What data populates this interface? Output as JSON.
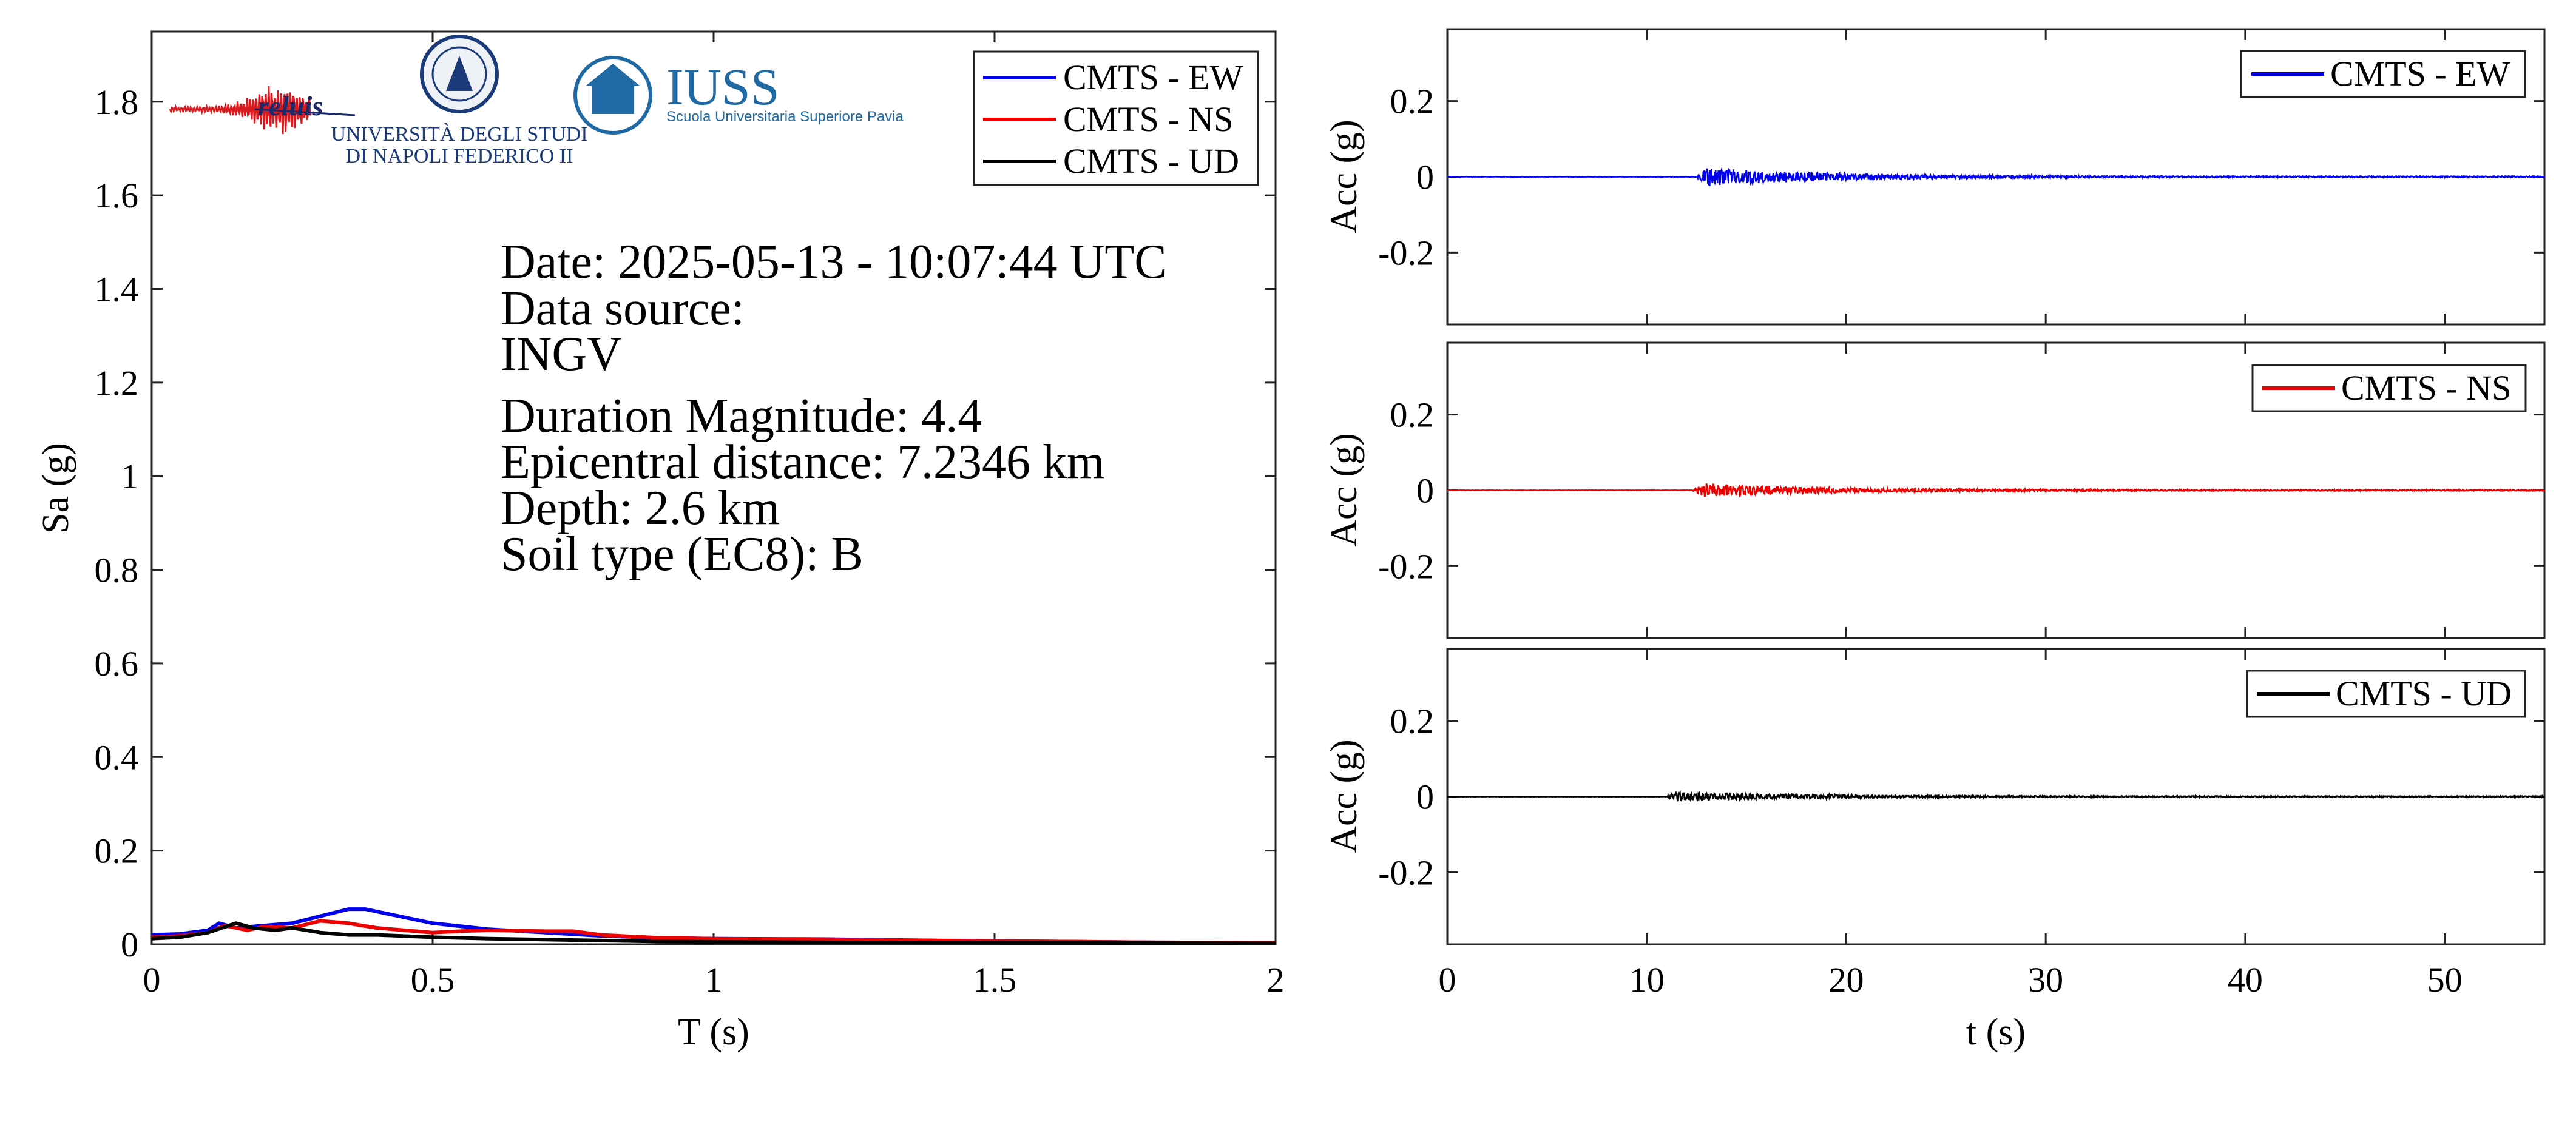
{
  "logos": {
    "reluis": "reluis",
    "unina_line1": "UNIVERSITÀ DEGLI STUDI",
    "unina_line2": "DI NAPOLI FEDERICO II",
    "iuss_title": "IUSS",
    "iuss_sub": "Scuola Universitaria Superiore Pavia"
  },
  "info": {
    "date": "Date: 2025-05-13 - 10:07:44 UTC",
    "source_label": "Data source:",
    "source": "INGV",
    "magnitude": "Duration Magnitude: 4.4",
    "distance": "Epicentral distance: 7.2346 km",
    "depth": "Depth: 2.6 km",
    "soil": "Soil type (EC8): B"
  },
  "colors": {
    "EW": "#0000ee",
    "NS": "#ee0000",
    "UD": "#000000"
  },
  "chart_data": [
    {
      "id": "spectrum",
      "type": "line",
      "xlabel": "T (s)",
      "ylabel": "Sa (g)",
      "xlim": [
        0,
        2
      ],
      "ylim": [
        0,
        1.95
      ],
      "xticks": [
        0,
        0.5,
        1,
        1.5,
        2
      ],
      "xticklabels": [
        "0",
        "0.5",
        "1",
        "1.5",
        "2"
      ],
      "yticks": [
        0,
        0.2,
        0.4,
        0.6,
        0.8,
        1,
        1.2,
        1.4,
        1.6,
        1.8
      ],
      "yticklabels": [
        "0",
        "0.2",
        "0.4",
        "0.6",
        "0.8",
        "1",
        "1.2",
        "1.4",
        "1.6",
        "1.8"
      ],
      "legend_position": "top-right",
      "series": [
        {
          "name": "CMTS - EW",
          "color": "#0000ee",
          "x": [
            0,
            0.05,
            0.1,
            0.12,
            0.15,
            0.2,
            0.25,
            0.3,
            0.35,
            0.38,
            0.42,
            0.5,
            0.6,
            0.7,
            0.8,
            0.9,
            1.0,
            1.2,
            1.4,
            1.6,
            1.8,
            2.0
          ],
          "y": [
            0.02,
            0.022,
            0.03,
            0.045,
            0.035,
            0.04,
            0.045,
            0.06,
            0.075,
            0.075,
            0.065,
            0.045,
            0.032,
            0.025,
            0.018,
            0.014,
            0.012,
            0.011,
            0.008,
            0.006,
            0.004,
            0.003
          ]
        },
        {
          "name": "CMTS - NS",
          "color": "#ee0000",
          "x": [
            0,
            0.05,
            0.1,
            0.13,
            0.17,
            0.2,
            0.25,
            0.3,
            0.35,
            0.4,
            0.45,
            0.5,
            0.55,
            0.6,
            0.7,
            0.75,
            0.8,
            0.9,
            1.0,
            1.2,
            1.4,
            1.6,
            1.8,
            2.0
          ],
          "y": [
            0.015,
            0.018,
            0.025,
            0.04,
            0.03,
            0.038,
            0.035,
            0.05,
            0.045,
            0.035,
            0.03,
            0.025,
            0.028,
            0.03,
            0.028,
            0.028,
            0.02,
            0.014,
            0.012,
            0.01,
            0.008,
            0.006,
            0.004,
            0.003
          ]
        },
        {
          "name": "CMTS - UD",
          "color": "#000000",
          "x": [
            0,
            0.05,
            0.1,
            0.15,
            0.18,
            0.22,
            0.25,
            0.3,
            0.35,
            0.4,
            0.5,
            0.6,
            0.7,
            0.8,
            0.9,
            1.0,
            1.2,
            1.5,
            2.0
          ],
          "y": [
            0.012,
            0.015,
            0.025,
            0.045,
            0.035,
            0.03,
            0.035,
            0.025,
            0.02,
            0.02,
            0.015,
            0.012,
            0.01,
            0.008,
            0.006,
            0.005,
            0.004,
            0.003,
            0.002
          ]
        }
      ]
    },
    {
      "id": "acc_ew",
      "type": "line",
      "xlabel": "",
      "ylabel": "Acc (g)",
      "xlim": [
        0,
        55
      ],
      "ylim": [
        -0.39,
        0.39
      ],
      "xticks": [
        0,
        10,
        20,
        30,
        40,
        50
      ],
      "yticks": [
        -0.2,
        0,
        0.2
      ],
      "yticklabels": [
        "-0.2",
        "0",
        "0.2"
      ],
      "legend_position": "top-right",
      "series": [
        {
          "name": "CMTS - EW",
          "color": "#0000ee",
          "duration": 55,
          "onset": 12.5,
          "peak": 0.025
        }
      ]
    },
    {
      "id": "acc_ns",
      "type": "line",
      "xlabel": "",
      "ylabel": "Acc (g)",
      "xlim": [
        0,
        55
      ],
      "ylim": [
        -0.39,
        0.39
      ],
      "xticks": [
        0,
        10,
        20,
        30,
        40,
        50
      ],
      "yticks": [
        -0.2,
        0,
        0.2
      ],
      "yticklabels": [
        "-0.2",
        "0",
        "0.2"
      ],
      "legend_position": "top-right",
      "series": [
        {
          "name": "CMTS - NS",
          "color": "#ee0000",
          "duration": 55,
          "onset": 12.3,
          "peak": 0.018
        }
      ]
    },
    {
      "id": "acc_ud",
      "type": "line",
      "xlabel": "t (s)",
      "ylabel": "Acc (g)",
      "xlim": [
        0,
        55
      ],
      "ylim": [
        -0.39,
        0.39
      ],
      "xticks": [
        0,
        10,
        20,
        30,
        40,
        50
      ],
      "xticklabels": [
        "0",
        "10",
        "20",
        "30",
        "40",
        "50"
      ],
      "yticks": [
        -0.2,
        0,
        0.2
      ],
      "yticklabels": [
        "-0.2",
        "0",
        "0.2"
      ],
      "legend_position": "top-right",
      "series": [
        {
          "name": "CMTS - UD",
          "color": "#000000",
          "duration": 55,
          "onset": 11.0,
          "peak": 0.012
        }
      ]
    }
  ]
}
